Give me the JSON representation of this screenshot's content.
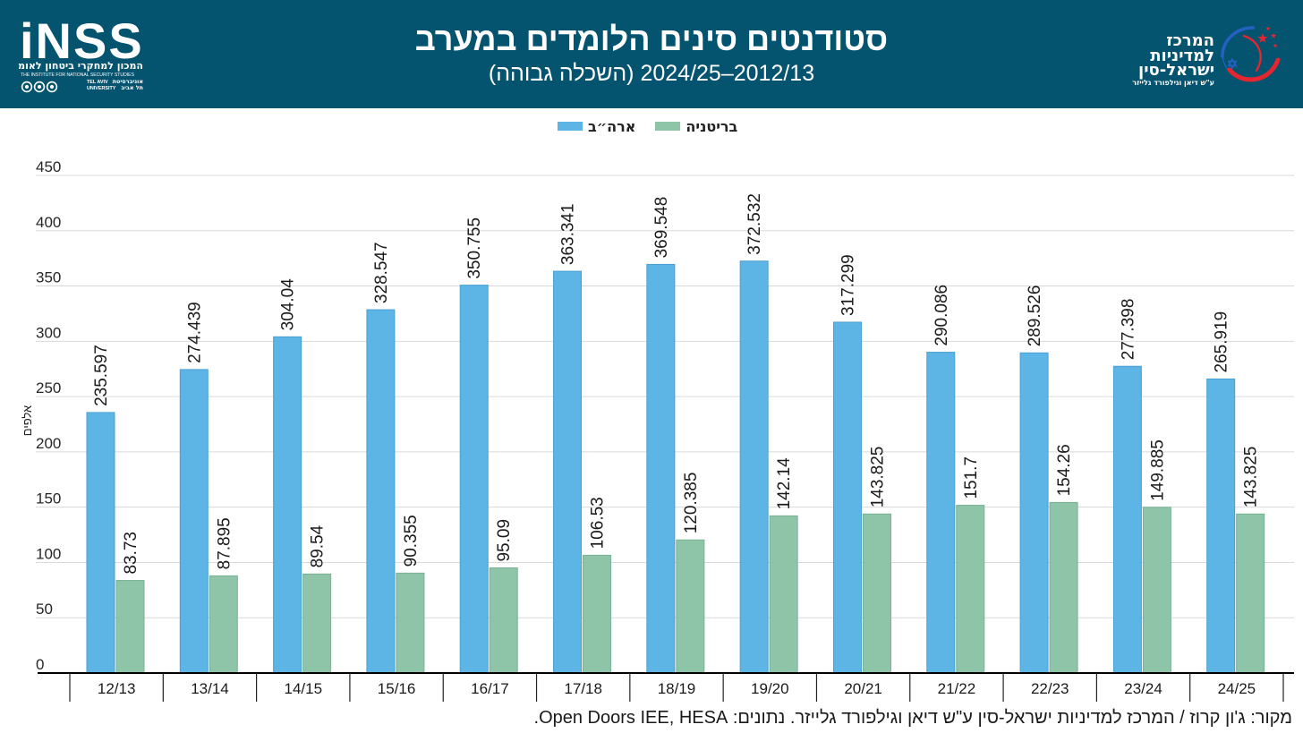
{
  "header": {
    "bg_color": "#04536f",
    "left_logo": {
      "wordmark": "iNSS",
      "name_he": "המכון למחקרי ביטחון לאומי",
      "name_en": "THE INSTITUTE FOR NATIONAL SECURITY STUDIES",
      "university_en_line1": "TEL AVIV",
      "university_en_line2": "UNIVERSITY",
      "university_he_line1": "אוניברסיטת",
      "university_he_line2": "תל אביב"
    },
    "right_logo": {
      "line1": "המרכז",
      "line2": "למדיניות",
      "line3": "ישראל-סין",
      "dedication": "ע\"ש דיאן וגילפורד גלייזר",
      "accent_red": "#e3262f",
      "accent_blue": "#2461c2"
    }
  },
  "chart_data": {
    "type": "bar",
    "title": "סטודנטים סינים הלומדים במערב",
    "subtitle": "2012/13–2024/25 (השכלה גבוהה)",
    "categories": [
      "12/13",
      "13/14",
      "14/15",
      "15/16",
      "16/17",
      "17/18",
      "18/19",
      "19/20",
      "20/21",
      "21/22",
      "22/23",
      "23/24",
      "24/25"
    ],
    "series": [
      {
        "name": "ארה״ב",
        "color": "#5db5e6",
        "stroke": "#4a9fd3",
        "values": [
          235.597,
          274.439,
          304.04,
          328.547,
          350.755,
          363.341,
          369.548,
          372.532,
          317.299,
          290.086,
          289.526,
          277.398,
          265.919
        ]
      },
      {
        "name": "בריטניה",
        "color": "#8ec4a8",
        "stroke": "#79b293",
        "values": [
          83.73,
          87.895,
          89.54,
          90.355,
          95.09,
          106.53,
          120.385,
          142.14,
          143.825,
          151.7,
          154.26,
          149.885,
          143.825
        ]
      }
    ],
    "ylabel": "אלפים",
    "ylim": [
      0,
      450
    ],
    "yticks": [
      0,
      50,
      100,
      150,
      200,
      250,
      300,
      350,
      400,
      450
    ],
    "grid": true,
    "legend_position": "top-center"
  },
  "source": "מקור: ג'ון קרוז / המרכז למדיניות ישראל-סין ע\"ש דיאן וגילפורד גלייזר. נתונים: Open Doors IEE, HESA."
}
